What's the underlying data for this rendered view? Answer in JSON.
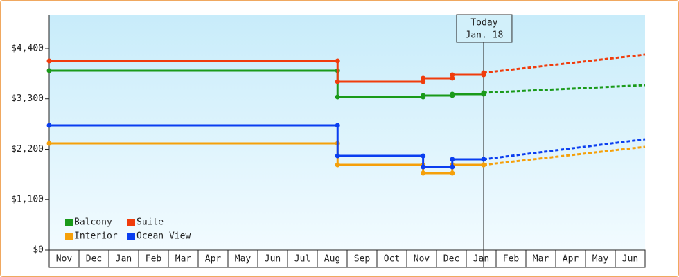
{
  "chart_data": {
    "type": "step-line",
    "categories": [
      "Nov",
      "Dec",
      "Jan",
      "Feb",
      "Mar",
      "Apr",
      "May",
      "Jun",
      "Jul",
      "Aug",
      "Sep",
      "Oct",
      "Nov",
      "Dec",
      "Jan",
      "Feb",
      "Mar",
      "Apr",
      "May",
      "Jun"
    ],
    "x": [
      0,
      9.68,
      12.55,
      13.53,
      14.58
    ],
    "xlim": [
      0,
      20
    ],
    "forecast_x": [
      20
    ],
    "series": [
      {
        "name": "Balcony",
        "color": "#1a9a1a",
        "values": [
          3916,
          3341,
          3372,
          3402,
          3432
        ],
        "forecast": [
          3598
        ]
      },
      {
        "name": "Suite",
        "color": "#f03c0c",
        "values": [
          4128,
          3674,
          3750,
          3825,
          3870
        ],
        "forecast": [
          4264
        ]
      },
      {
        "name": "Interior",
        "color": "#f5a00a",
        "values": [
          2328,
          1860,
          1678,
          1860,
          1860
        ],
        "forecast": [
          2253
        ]
      },
      {
        "name": "Ocean View",
        "color": "#0a3ef0",
        "values": [
          2722,
          2056,
          1814,
          1981,
          1981
        ],
        "forecast": [
          2419
        ]
      }
    ],
    "ylim": [
      0,
      5140
    ],
    "yticks": [
      {
        "value": 0,
        "label": "$0"
      },
      {
        "value": 1100,
        "label": "$1,100"
      },
      {
        "value": 2200,
        "label": "$2,200"
      },
      {
        "value": 3300,
        "label": "$3,300"
      },
      {
        "value": 4400,
        "label": "$4,400"
      }
    ],
    "grid": false,
    "annotation": [
      "Today",
      "Jan. 18"
    ],
    "legend": "bottom-left"
  }
}
